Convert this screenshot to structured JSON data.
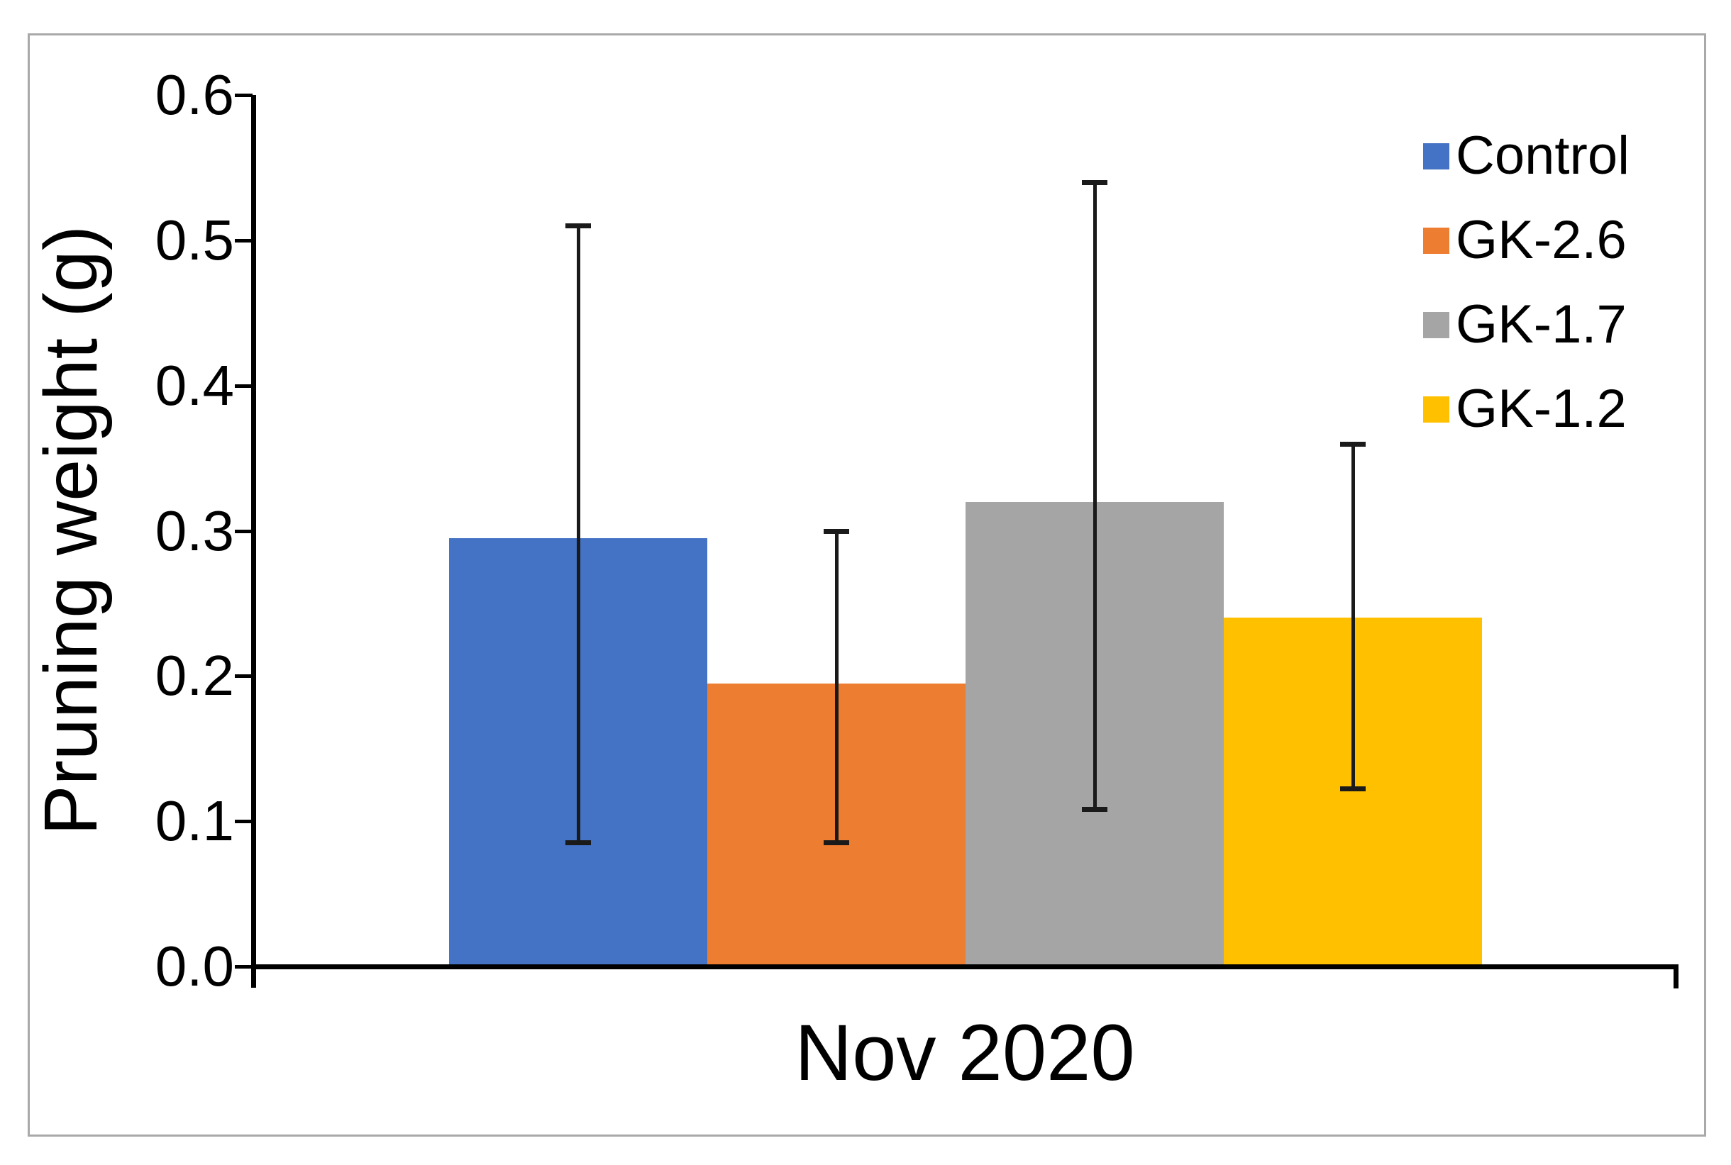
{
  "chart_data": {
    "type": "bar",
    "title": "",
    "categories": [
      "Nov 2020"
    ],
    "series": [
      {
        "name": "Control",
        "color": "#4472C4",
        "value": 0.295,
        "error_top": 0.51,
        "error_bottom": 0.085
      },
      {
        "name": "GK-2.6",
        "color": "#ED7D31",
        "value": 0.195,
        "error_top": 0.3,
        "error_bottom": 0.085
      },
      {
        "name": "GK-1.7",
        "color": "#A5A5A5",
        "value": 0.32,
        "error_top": 0.54,
        "error_bottom": 0.108
      },
      {
        "name": "GK-1.2",
        "color": "#FFC000",
        "value": 0.24,
        "error_top": 0.36,
        "error_bottom": 0.122
      }
    ],
    "xlabel": "Nov 2020",
    "ylabel": "Pruning weight (g)",
    "ylim": [
      0.0,
      0.6
    ],
    "y_ticks": [
      "0.0",
      "0.1",
      "0.2",
      "0.3",
      "0.4",
      "0.5",
      "0.6"
    ],
    "grid": false,
    "legend_position": "top-right",
    "axis_color": "#000000",
    "error_bar_color": "#1a1a1a",
    "frame_border_color": "#a9a9a9"
  }
}
